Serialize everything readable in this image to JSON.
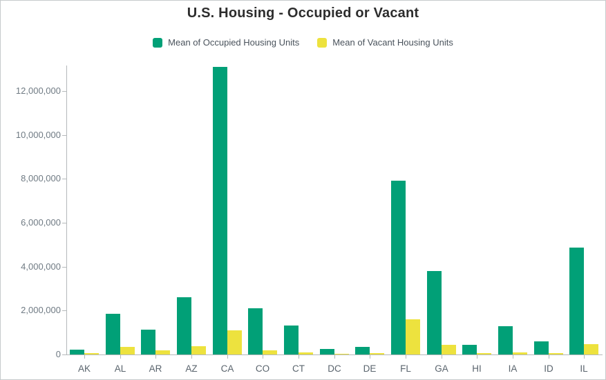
{
  "title": "U.S. Housing - Occupied or Vacant",
  "legend": {
    "items": [
      {
        "label": "Mean of Occupied Housing Units",
        "color": "#01a077"
      },
      {
        "label": "Mean of Vacant Housing Units",
        "color": "#ede23e"
      }
    ],
    "position": "top"
  },
  "chart_data": {
    "type": "bar",
    "title": "U.S. Housing - Occupied or Vacant",
    "xlabel": "",
    "ylabel": "",
    "categories": [
      "AK",
      "AL",
      "AR",
      "AZ",
      "CA",
      "CO",
      "CT",
      "DC",
      "DE",
      "FL",
      "GA",
      "HI",
      "IA",
      "ID",
      "IL"
    ],
    "series": [
      {
        "name": "Mean of Occupied Housing Units",
        "color": "#01a077",
        "values": [
          230000,
          1850000,
          1120000,
          2600000,
          13100000,
          2090000,
          1330000,
          250000,
          340000,
          7900000,
          3800000,
          430000,
          1280000,
          600000,
          4860000
        ]
      },
      {
        "name": "Mean of Vacant Housing Units",
        "color": "#ede23e",
        "values": [
          70000,
          360000,
          180000,
          380000,
          1090000,
          200000,
          100000,
          30000,
          50000,
          1600000,
          450000,
          50000,
          100000,
          60000,
          460000
        ]
      }
    ],
    "ylim": [
      0,
      13160000
    ],
    "yticks": [
      {
        "value": 0,
        "label": "0"
      },
      {
        "value": 2000000,
        "label": "2,000,000"
      },
      {
        "value": 4000000,
        "label": "4,000,000"
      },
      {
        "value": 6000000,
        "label": "6,000,000"
      },
      {
        "value": 8000000,
        "label": "8,000,000"
      },
      {
        "value": 10000000,
        "label": "10,000,000"
      },
      {
        "value": 12000000,
        "label": "12,000,000"
      }
    ],
    "grid": false,
    "legend_position": "top"
  },
  "colors": {
    "occupied": "#01a077",
    "vacant": "#ede23e",
    "axis": "#b4b8ba",
    "title_text": "#2d2d2d",
    "legend_text": "#49525b",
    "tick_text": "#6f7a83",
    "border": "#c6cacc"
  }
}
